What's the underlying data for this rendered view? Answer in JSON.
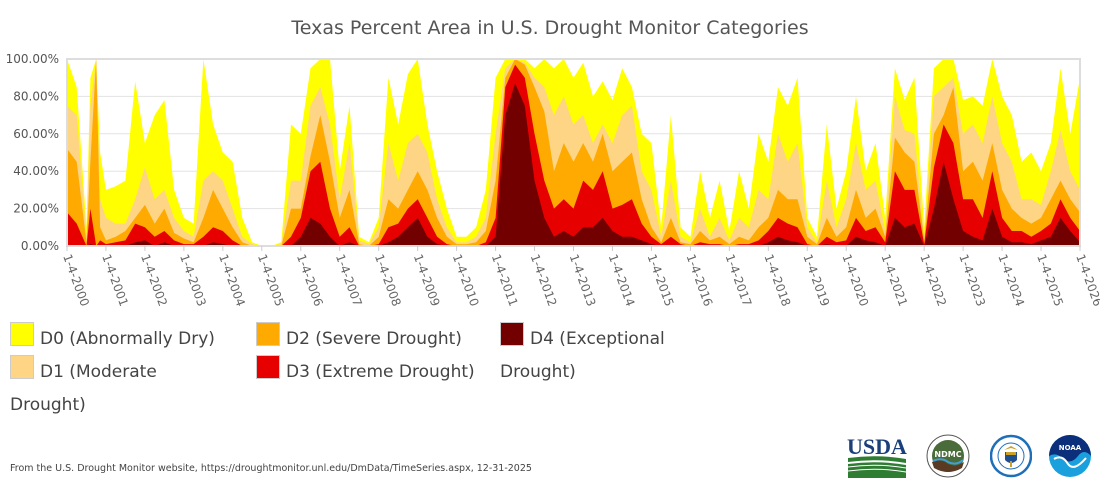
{
  "chart_data": {
    "type": "area",
    "stacked": "cumulative",
    "title": "Texas Percent Area in U.S. Drought Monitor Categories",
    "xlabel": "",
    "ylabel": "",
    "ylim": [
      0,
      100
    ],
    "xlim": [
      2000.0,
      2026.0
    ],
    "grid": true,
    "y_ticks": [
      "0.00%",
      "20.00%",
      "40.00%",
      "60.00%",
      "80.00%",
      "100.00%"
    ],
    "x_ticks": [
      "1-4-2000",
      "1-4-2001",
      "1-4-2002",
      "1-4-2003",
      "1-4-2004",
      "1-4-2005",
      "1-4-2006",
      "1-4-2007",
      "1-4-2008",
      "1-4-2009",
      "1-4-2010",
      "1-4-2011",
      "1-4-2012",
      "1-4-2013",
      "1-4-2014",
      "1-4-2015",
      "1-4-2016",
      "1-4-2017",
      "1-4-2018",
      "1-4-2019",
      "1-4-2020",
      "1-4-2021",
      "1-4-2022",
      "1-4-2023",
      "1-4-2024",
      "1-4-2025",
      "1-4-2026"
    ],
    "legend_placement": "bottom-left",
    "x": [
      2000.0,
      2000.25,
      2000.5,
      2000.6,
      2000.75,
      2000.85,
      2001.0,
      2001.25,
      2001.5,
      2001.75,
      2002.0,
      2002.25,
      2002.5,
      2002.75,
      2003.0,
      2003.25,
      2003.5,
      2003.75,
      2004.0,
      2004.25,
      2004.5,
      2004.75,
      2005.0,
      2005.25,
      2005.5,
      2005.75,
      2006.0,
      2006.25,
      2006.5,
      2006.75,
      2007.0,
      2007.25,
      2007.5,
      2007.75,
      2008.0,
      2008.25,
      2008.5,
      2008.75,
      2009.0,
      2009.25,
      2009.5,
      2009.75,
      2010.0,
      2010.25,
      2010.5,
      2010.75,
      2011.0,
      2011.25,
      2011.5,
      2011.75,
      2012.0,
      2012.25,
      2012.5,
      2012.75,
      2013.0,
      2013.25,
      2013.5,
      2013.75,
      2014.0,
      2014.25,
      2014.5,
      2014.75,
      2015.0,
      2015.25,
      2015.5,
      2015.75,
      2016.0,
      2016.25,
      2016.5,
      2016.75,
      2017.0,
      2017.25,
      2017.5,
      2017.75,
      2018.0,
      2018.25,
      2018.5,
      2018.75,
      2019.0,
      2019.25,
      2019.5,
      2019.75,
      2020.0,
      2020.25,
      2020.5,
      2020.75,
      2021.0,
      2021.25,
      2021.5,
      2021.75,
      2022.0,
      2022.25,
      2022.5,
      2022.75,
      2023.0,
      2023.25,
      2023.5,
      2023.75,
      2024.0,
      2024.25,
      2024.5,
      2024.75,
      2025.0,
      2025.25,
      2025.5,
      2025.75,
      2026.0
    ],
    "series": [
      {
        "name": "D0 (Abnormally Dry)",
        "color": "#ffff00",
        "values": [
          100,
          85,
          10,
          90,
          100,
          50,
          30,
          32,
          35,
          88,
          55,
          70,
          78,
          30,
          15,
          12,
          100,
          65,
          50,
          45,
          15,
          2,
          0,
          0,
          2,
          65,
          60,
          95,
          100,
          100,
          40,
          75,
          5,
          2,
          15,
          90,
          65,
          92,
          100,
          65,
          40,
          20,
          5,
          5,
          10,
          30,
          90,
          100,
          100,
          100,
          95,
          100,
          95,
          100,
          90,
          98,
          80,
          88,
          78,
          95,
          85,
          60,
          55,
          10,
          70,
          10,
          5,
          40,
          15,
          35,
          8,
          40,
          20,
          60,
          45,
          85,
          75,
          90,
          15,
          5,
          65,
          20,
          40,
          80,
          40,
          55,
          15,
          95,
          78,
          90,
          10,
          95,
          100,
          100,
          78,
          80,
          75,
          100,
          80,
          70,
          45,
          50,
          40,
          55,
          95,
          60,
          90
        ]
      },
      {
        "name": "D1 (Moderate Drought)",
        "color": "#fdd585",
        "values": [
          75,
          70,
          5,
          75,
          100,
          25,
          15,
          12,
          12,
          25,
          42,
          25,
          30,
          15,
          8,
          5,
          35,
          40,
          35,
          20,
          5,
          1,
          0,
          0,
          1,
          35,
          35,
          75,
          85,
          65,
          25,
          55,
          3,
          1,
          10,
          55,
          35,
          55,
          60,
          50,
          25,
          10,
          2,
          2,
          5,
          15,
          60,
          95,
          100,
          98,
          90,
          85,
          70,
          80,
          65,
          70,
          55,
          65,
          55,
          70,
          75,
          40,
          30,
          5,
          35,
          5,
          2,
          20,
          5,
          15,
          3,
          15,
          10,
          30,
          25,
          60,
          45,
          55,
          10,
          2,
          35,
          10,
          25,
          55,
          30,
          35,
          8,
          80,
          62,
          60,
          5,
          80,
          85,
          90,
          60,
          65,
          55,
          80,
          55,
          45,
          25,
          25,
          22,
          40,
          62,
          40,
          30
        ]
      },
      {
        "name": "D2 (Severe Drought)",
        "color": "#ffaa00",
        "values": [
          52,
          45,
          2,
          45,
          100,
          10,
          3,
          5,
          8,
          15,
          22,
          12,
          20,
          7,
          4,
          2,
          15,
          30,
          20,
          10,
          2,
          0,
          0,
          0,
          0,
          20,
          20,
          48,
          70,
          45,
          15,
          30,
          1,
          0,
          5,
          25,
          20,
          30,
          40,
          30,
          15,
          5,
          1,
          1,
          2,
          8,
          35,
          90,
          100,
          97,
          85,
          72,
          40,
          55,
          45,
          55,
          45,
          60,
          40,
          45,
          50,
          25,
          10,
          2,
          15,
          2,
          1,
          8,
          3,
          5,
          1,
          5,
          3,
          10,
          15,
          30,
          25,
          25,
          5,
          1,
          15,
          5,
          10,
          30,
          15,
          20,
          5,
          58,
          50,
          45,
          3,
          60,
          70,
          85,
          40,
          45,
          35,
          55,
          30,
          20,
          15,
          12,
          15,
          25,
          35,
          25,
          18
        ]
      },
      {
        "name": "D3 (Extreme Drought)",
        "color": "#e60000",
        "values": [
          18,
          12,
          0,
          20,
          0,
          3,
          1,
          2,
          3,
          12,
          10,
          5,
          8,
          3,
          1,
          1,
          5,
          10,
          8,
          3,
          0,
          0,
          0,
          0,
          0,
          5,
          15,
          40,
          45,
          20,
          5,
          10,
          0,
          0,
          1,
          10,
          12,
          20,
          25,
          15,
          5,
          1,
          0,
          0,
          0,
          2,
          15,
          85,
          97,
          90,
          60,
          35,
          20,
          25,
          20,
          35,
          30,
          40,
          20,
          22,
          25,
          12,
          5,
          1,
          5,
          1,
          0,
          2,
          1,
          1,
          0,
          1,
          1,
          3,
          8,
          15,
          12,
          10,
          1,
          0,
          5,
          2,
          3,
          15,
          8,
          10,
          2,
          40,
          30,
          30,
          1,
          42,
          65,
          55,
          25,
          25,
          15,
          40,
          15,
          8,
          8,
          5,
          8,
          12,
          25,
          15,
          8
        ]
      },
      {
        "name": "D4 (Exceptional Drought)",
        "color": "#730000",
        "values": [
          0,
          0,
          0,
          1,
          0,
          0,
          0,
          0,
          0,
          2,
          3,
          0,
          2,
          0,
          0,
          0,
          0,
          2,
          1,
          0,
          0,
          0,
          0,
          0,
          0,
          0,
          5,
          15,
          12,
          5,
          0,
          2,
          0,
          0,
          0,
          2,
          5,
          10,
          15,
          5,
          1,
          0,
          0,
          0,
          0,
          0,
          5,
          70,
          87,
          75,
          35,
          15,
          5,
          8,
          5,
          10,
          10,
          15,
          8,
          5,
          5,
          3,
          1,
          0,
          0,
          0,
          0,
          0,
          0,
          0,
          0,
          0,
          0,
          0,
          2,
          5,
          3,
          2,
          0,
          0,
          1,
          0,
          0,
          5,
          3,
          2,
          0,
          15,
          10,
          12,
          0,
          20,
          45,
          25,
          8,
          5,
          3,
          20,
          5,
          2,
          2,
          1,
          3,
          5,
          15,
          8,
          2
        ]
      }
    ]
  },
  "legend": {
    "items": [
      {
        "label_line1": "D0 (Abnormally Dry)",
        "label_line2": "",
        "color": "#ffff00"
      },
      {
        "label_line1": "D1 (Moderate",
        "label_line2": "Drought)",
        "color": "#fdd585"
      },
      {
        "label_line1": "D2 (Severe Drought)",
        "label_line2": "",
        "color": "#ffaa00"
      },
      {
        "label_line1": "D3 (Extreme Drought)",
        "label_line2": "",
        "color": "#e60000"
      },
      {
        "label_line1": "D4 (Exceptional",
        "label_line2": "Drought)",
        "color": "#730000"
      }
    ]
  },
  "footer": {
    "source": "From the U.S. Drought Monitor website, https://droughtmonitor.unl.edu/DmData/TimeSeries.aspx, 12-31-2025"
  },
  "logos": {
    "usda": "USDA",
    "ndmc": "NDMC",
    "commerce": "Department of Commerce seal",
    "noaa": "NOAA"
  }
}
